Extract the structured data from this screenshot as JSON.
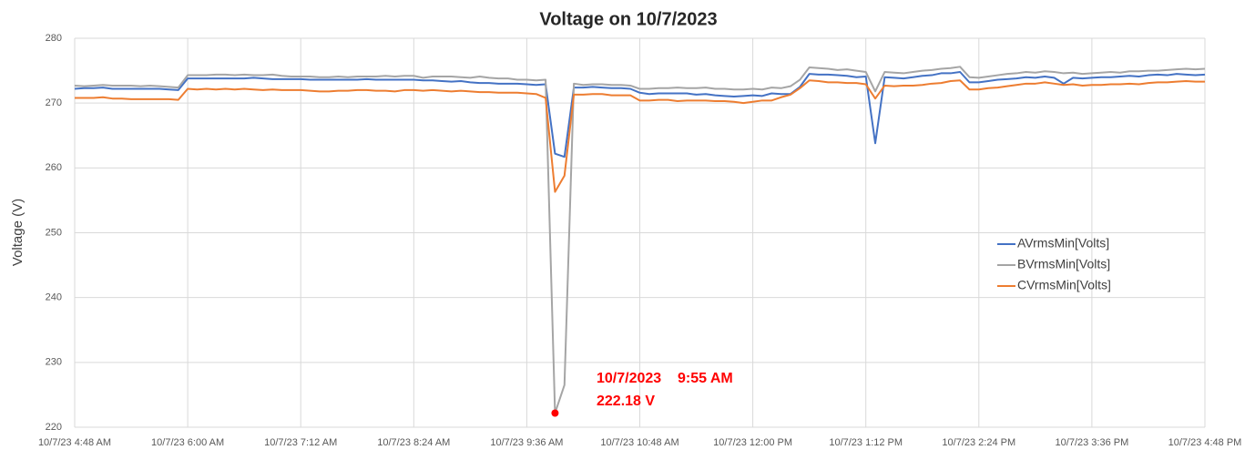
{
  "chart_data": {
    "type": "line",
    "title": "Voltage on 10/7/2023",
    "y_label": "Voltage (V)",
    "categories": [
      "10/7/23 4:48 AM",
      null,
      null,
      null,
      null,
      null,
      null,
      null,
      null,
      null,
      null,
      null,
      "10/7/23 6:00 AM",
      null,
      null,
      null,
      null,
      null,
      null,
      null,
      null,
      null,
      null,
      null,
      "10/7/23 7:12 AM",
      null,
      null,
      null,
      null,
      null,
      null,
      null,
      null,
      null,
      null,
      null,
      "10/7/23 8:24 AM",
      null,
      null,
      null,
      null,
      null,
      null,
      null,
      null,
      null,
      null,
      null,
      "10/7/23 9:36 AM",
      null,
      null,
      null,
      null,
      null,
      null,
      null,
      null,
      null,
      null,
      null,
      "10/7/23 10:48 AM",
      null,
      null,
      null,
      null,
      null,
      null,
      null,
      null,
      null,
      null,
      null,
      "10/7/23 12:00 PM",
      null,
      null,
      null,
      null,
      null,
      null,
      null,
      null,
      null,
      null,
      null,
      "10/7/23 1:12 PM",
      null,
      null,
      null,
      null,
      null,
      null,
      null,
      null,
      null,
      null,
      null,
      "10/7/23 2:24 PM",
      null,
      null,
      null,
      null,
      null,
      null,
      null,
      null,
      null,
      null,
      null,
      "10/7/23 3:36 PM",
      null,
      null,
      null,
      null,
      null,
      null,
      null,
      null,
      null,
      null,
      null,
      "10/7/23 4:48 PM"
    ],
    "series": [
      {
        "name": "AVrmsMin[Volts]",
        "color": "#4472c4",
        "values": [
          272.2,
          272.3,
          272.3,
          272.4,
          272.2,
          272.2,
          272.2,
          272.2,
          272.2,
          272.2,
          272.1,
          272.0,
          273.8,
          273.8,
          273.8,
          273.8,
          273.8,
          273.8,
          273.8,
          273.9,
          273.8,
          273.7,
          273.7,
          273.7,
          273.7,
          273.6,
          273.6,
          273.6,
          273.6,
          273.6,
          273.6,
          273.7,
          273.6,
          273.6,
          273.6,
          273.6,
          273.6,
          273.5,
          273.5,
          273.4,
          273.3,
          273.4,
          273.2,
          273.1,
          273.1,
          273.0,
          273.0,
          273.0,
          272.9,
          272.8,
          272.9,
          262.2,
          261.7,
          272.4,
          272.4,
          272.5,
          272.4,
          272.3,
          272.3,
          272.2,
          271.6,
          271.4,
          271.5,
          271.5,
          271.5,
          271.5,
          271.3,
          271.4,
          271.2,
          271.1,
          271.0,
          271.1,
          271.2,
          271.1,
          271.5,
          271.4,
          271.4,
          272.5,
          274.5,
          274.4,
          274.4,
          274.3,
          274.2,
          274.0,
          274.1,
          263.8,
          274.0,
          273.9,
          273.8,
          274.0,
          274.2,
          274.3,
          274.6,
          274.6,
          274.8,
          273.2,
          273.2,
          273.4,
          273.6,
          273.7,
          273.8,
          274.0,
          273.9,
          274.1,
          273.9,
          273.0,
          273.9,
          273.8,
          273.9,
          274.0,
          274.0,
          274.1,
          274.2,
          274.1,
          274.3,
          274.4,
          274.3,
          274.5,
          274.4,
          274.3,
          274.4
        ]
      },
      {
        "name": "BVrmsMin[Volts]",
        "color": "#a5a5a5",
        "values": [
          272.7,
          272.6,
          272.7,
          272.8,
          272.7,
          272.7,
          272.7,
          272.6,
          272.7,
          272.6,
          272.5,
          272.4,
          274.3,
          274.3,
          274.3,
          274.4,
          274.4,
          274.3,
          274.4,
          274.3,
          274.3,
          274.4,
          274.2,
          274.1,
          274.1,
          274.1,
          274.0,
          274.0,
          274.1,
          274.0,
          274.1,
          274.1,
          274.1,
          274.2,
          274.1,
          274.2,
          274.2,
          273.9,
          274.1,
          274.1,
          274.1,
          274.0,
          273.9,
          274.1,
          273.9,
          273.8,
          273.8,
          273.6,
          273.6,
          273.5,
          273.6,
          222.18,
          226.5,
          273.0,
          272.8,
          272.9,
          272.9,
          272.8,
          272.8,
          272.7,
          272.2,
          272.2,
          272.3,
          272.3,
          272.4,
          272.3,
          272.3,
          272.4,
          272.2,
          272.2,
          272.1,
          272.1,
          272.2,
          272.1,
          272.4,
          272.3,
          272.6,
          273.6,
          275.5,
          275.4,
          275.3,
          275.1,
          275.2,
          275.0,
          274.8,
          271.8,
          274.8,
          274.7,
          274.6,
          274.8,
          275.0,
          275.1,
          275.3,
          275.4,
          275.6,
          274.0,
          273.9,
          274.1,
          274.3,
          274.5,
          274.6,
          274.8,
          274.7,
          274.9,
          274.8,
          274.6,
          274.7,
          274.5,
          274.6,
          274.7,
          274.8,
          274.7,
          274.9,
          274.9,
          275.0,
          275.0,
          275.1,
          275.2,
          275.3,
          275.2,
          275.3
        ]
      },
      {
        "name": "CVrmsMin[Volts]",
        "color": "#ed7d31",
        "values": [
          270.8,
          270.8,
          270.8,
          270.9,
          270.7,
          270.7,
          270.6,
          270.6,
          270.6,
          270.6,
          270.6,
          270.5,
          272.2,
          272.1,
          272.2,
          272.1,
          272.2,
          272.1,
          272.2,
          272.1,
          272.0,
          272.1,
          272.0,
          272.0,
          272.0,
          271.9,
          271.8,
          271.8,
          271.9,
          271.9,
          272.0,
          272.0,
          271.9,
          271.9,
          271.8,
          272.0,
          272.0,
          271.9,
          272.0,
          271.9,
          271.8,
          271.9,
          271.8,
          271.7,
          271.7,
          271.6,
          271.6,
          271.6,
          271.5,
          271.4,
          270.8,
          256.3,
          258.8,
          271.3,
          271.3,
          271.4,
          271.4,
          271.2,
          271.2,
          271.2,
          270.4,
          270.4,
          270.5,
          270.5,
          270.3,
          270.4,
          270.4,
          270.4,
          270.3,
          270.3,
          270.2,
          270.0,
          270.2,
          270.4,
          270.4,
          270.9,
          271.3,
          272.3,
          273.5,
          273.4,
          273.2,
          273.2,
          273.1,
          273.1,
          272.9,
          270.7,
          272.7,
          272.6,
          272.7,
          272.7,
          272.8,
          273.0,
          273.1,
          273.4,
          273.5,
          272.1,
          272.1,
          272.3,
          272.4,
          272.6,
          272.8,
          273.0,
          273.0,
          273.2,
          273.0,
          272.8,
          272.9,
          272.7,
          272.8,
          272.8,
          272.9,
          272.9,
          273.0,
          272.9,
          273.1,
          273.2,
          273.2,
          273.3,
          273.4,
          273.3,
          273.3
        ]
      }
    ],
    "ylim": [
      220,
      280
    ],
    "yticks": [
      220,
      230,
      240,
      250,
      260,
      270,
      280
    ],
    "grid": true,
    "legend": "right",
    "annotation": {
      "text": "10/7/2023    9:55 AM",
      "value": 222.18,
      "value_label": "222.18 V",
      "color": "#ff0000"
    }
  }
}
